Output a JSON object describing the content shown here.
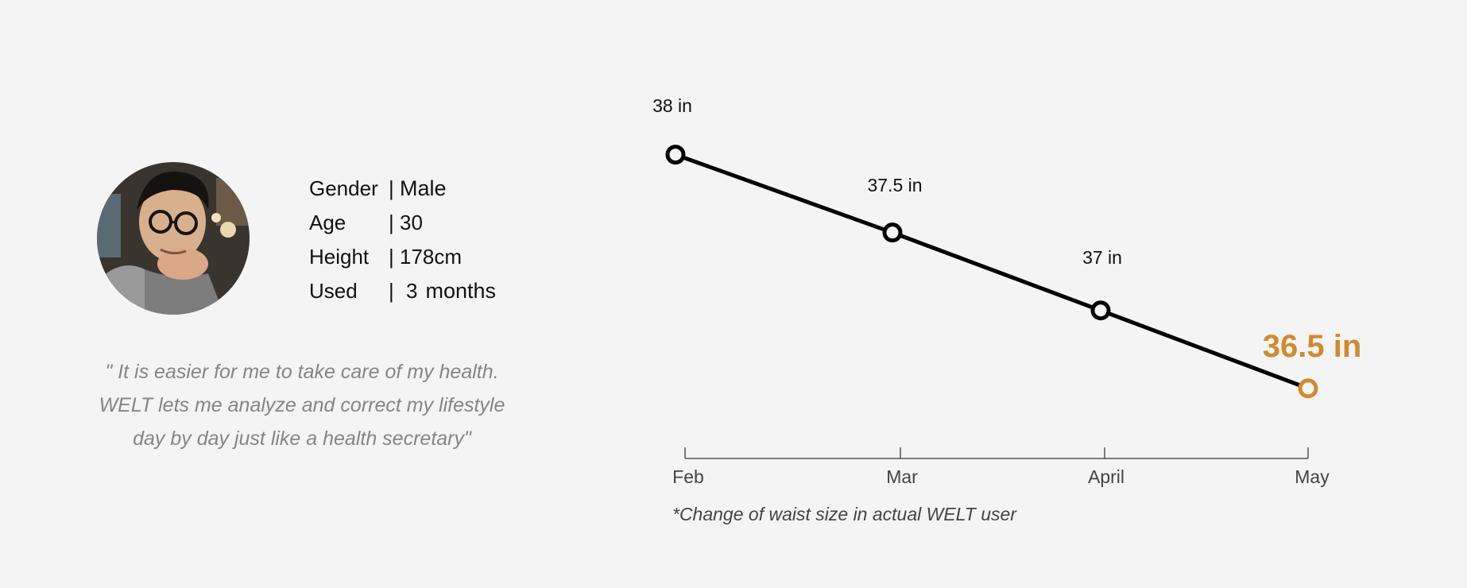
{
  "profile": {
    "gender_label": "Gender",
    "gender_value": "Male",
    "age_label": "Age",
    "age_value": "30",
    "height_label": "Height",
    "height_value": "178cm",
    "used_label": "Used",
    "used_number": "3",
    "used_unit": "months",
    "separator": "|"
  },
  "quote": {
    "line1": "\" It is easier for me to take care of my health.",
    "line2": "WELT lets me analyze and correct my lifestyle",
    "line3": "day by day just like a health secretary\""
  },
  "chart_data": {
    "type": "line",
    "categories": [
      "Feb",
      "Mar",
      "April",
      "May"
    ],
    "values": [
      38,
      37.5,
      37,
      36.5
    ],
    "unit": "in",
    "data_labels": [
      "38 in",
      "37.5 in",
      "37 in",
      "36.5 in"
    ],
    "ylim": [
      36.3,
      38.1
    ],
    "grid": false,
    "highlight_index": 3,
    "colors": {
      "line": "#000000",
      "highlight": "#d4892f",
      "axis": "#555555",
      "tick_label": "#444444"
    }
  },
  "footnote": "*Change of waist size in actual WELT user"
}
